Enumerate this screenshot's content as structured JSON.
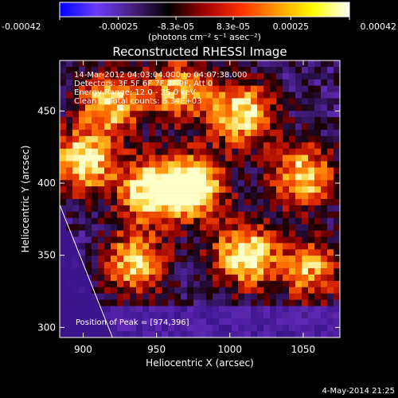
{
  "colorbar": {
    "ticks": [
      "-0.00042",
      "-0.00025",
      "-8.3e-05",
      "8.3e-05",
      "0.00025",
      "0.00042"
    ],
    "tick_values": [
      -0.00042,
      -0.00025,
      -8.3e-05,
      8.3e-05,
      0.00025,
      0.00042
    ],
    "range": [
      -0.00042,
      0.00042
    ],
    "units": "(photons cm⁻² s⁻¹ asec⁻²)",
    "colors": [
      "#0000ff",
      "#6a3cff",
      "#4a2080",
      "#000000",
      "#a00000",
      "#ff3000",
      "#ff9900",
      "#ffff00",
      "#ffffff"
    ]
  },
  "chart_data": {
    "type": "heatmap",
    "title": "Reconstructed RHESSI Image",
    "xlabel": "Heliocentric X (arcsec)",
    "ylabel": "Heliocentric Y (arcsec)",
    "xlim": [
      884,
      1075
    ],
    "ylim": [
      293,
      485
    ],
    "xticks": [
      900,
      950,
      1000,
      1050
    ],
    "yticks": [
      300,
      350,
      400,
      450
    ],
    "annotations": [
      "14-Mar-2012 04:03:04.000 to 04:07:38.000",
      "Detectors: 3F 5F 6F 7F 8F 9F, Att 0",
      "Energy Range: 12.0 - 25.0 keV",
      "Clean     Total counts: 6.34E+03"
    ],
    "peak_label": "Position of Peak = [974,396]",
    "peak": [
      974,
      396
    ],
    "limb_line": [
      [
        884,
        385
      ],
      [
        920,
        293
      ]
    ],
    "bright_regions": [
      {
        "x": 900,
        "y": 415,
        "level": 0.9
      },
      {
        "x": 918,
        "y": 455,
        "level": 0.8
      },
      {
        "x": 945,
        "y": 395,
        "level": 0.9
      },
      {
        "x": 975,
        "y": 398,
        "level": 1.0
      },
      {
        "x": 965,
        "y": 465,
        "level": 0.75
      },
      {
        "x": 1008,
        "y": 448,
        "level": 0.9
      },
      {
        "x": 1010,
        "y": 350,
        "level": 0.95
      },
      {
        "x": 1050,
        "y": 405,
        "level": 0.85
      },
      {
        "x": 1055,
        "y": 340,
        "level": 0.7
      },
      {
        "x": 935,
        "y": 345,
        "level": 0.8
      }
    ]
  },
  "footer": {
    "timestamp": "4-May-2014 21:25"
  }
}
